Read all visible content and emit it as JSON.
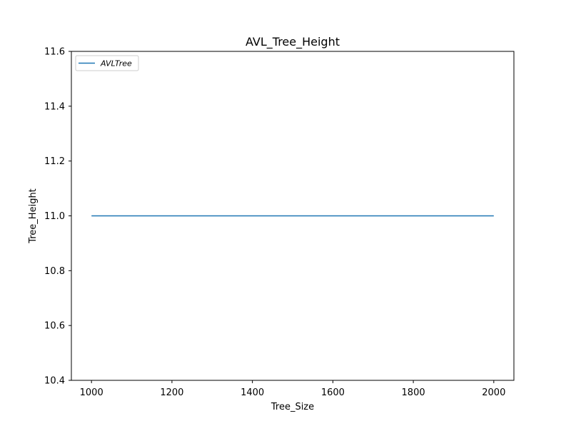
{
  "chart_data": {
    "type": "line",
    "title": "AVL_Tree_Height",
    "xlabel": "Tree_Size",
    "ylabel": "Tree_Height",
    "xlim": [
      950,
      2050
    ],
    "ylim": [
      10.4,
      11.6
    ],
    "xticks": [
      1000,
      1200,
      1400,
      1600,
      1800,
      2000
    ],
    "yticks": [
      10.4,
      10.6,
      10.8,
      11.0,
      11.2,
      11.4,
      11.6
    ],
    "xtick_labels": [
      "1000",
      "1200",
      "1400",
      "1600",
      "1800",
      "2000"
    ],
    "ytick_labels": [
      "10.4",
      "10.6",
      "10.8",
      "11.0",
      "11.2",
      "11.4",
      "11.6"
    ],
    "grid": false,
    "legend_position": "top-left",
    "series": [
      {
        "name": "AVLTree",
        "color": "#1f77b4",
        "x": [
          1000,
          2000
        ],
        "y": [
          11.0,
          11.0
        ]
      }
    ]
  }
}
